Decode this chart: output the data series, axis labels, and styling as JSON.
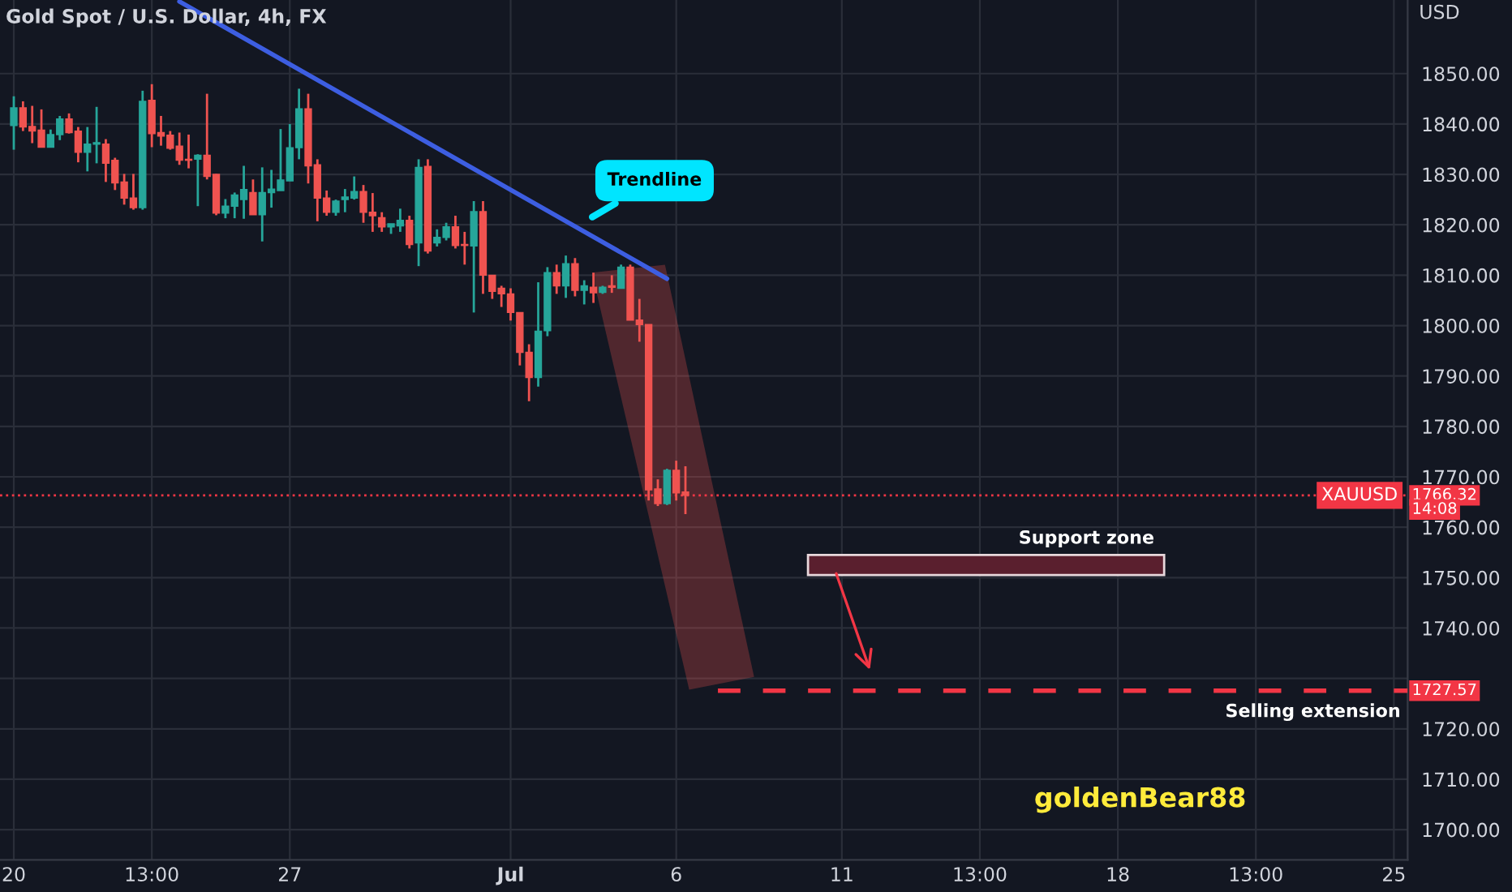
{
  "chart_data": {
    "type": "candlestick",
    "title": "Gold Spot / U.S. Dollar, 4h, FX",
    "ylabel": "USD",
    "categories": [
      "20",
      null,
      null,
      null,
      null,
      null,
      null,
      null,
      null,
      null,
      null,
      null,
      null,
      null,
      null,
      "13:00",
      null,
      null,
      null,
      null,
      null,
      null,
      null,
      null,
      null,
      null,
      null,
      null,
      null,
      null,
      "27",
      null,
      null,
      null,
      null,
      null,
      null,
      null,
      null,
      null,
      null,
      null,
      null,
      null,
      null,
      null,
      null,
      null,
      null,
      null,
      null,
      null,
      null,
      null,
      "Jul",
      null,
      null,
      null,
      null,
      null,
      null,
      null,
      null,
      null,
      null,
      null,
      null,
      null,
      null,
      null,
      null,
      null,
      "6",
      null,
      null,
      null,
      null,
      null,
      null,
      null,
      null,
      null,
      null,
      null,
      null,
      null,
      null,
      null,
      null,
      null,
      "11",
      null,
      null,
      null,
      null,
      null,
      null,
      null,
      null,
      null,
      null,
      null,
      null,
      null,
      null,
      "13:00",
      null,
      null,
      null,
      null,
      null,
      null,
      null,
      null,
      null,
      null,
      null,
      null,
      null,
      null,
      "18",
      null,
      null,
      null,
      null,
      null,
      null,
      null,
      null,
      null,
      null,
      null,
      null,
      null,
      null,
      "13:00",
      null,
      null,
      null,
      null,
      null,
      null,
      null,
      null,
      null,
      null,
      null,
      null,
      null,
      null,
      "25",
      null
    ],
    "ohlc": [
      [
        1839.7,
        1845.5,
        1834.9,
        1843.2
      ],
      [
        1843.2,
        1844.5,
        1838.6,
        1839.4
      ],
      [
        1839.5,
        1843.6,
        1836.2,
        1838.6
      ],
      [
        1838.8,
        1842.9,
        1835.4,
        1835.4
      ],
      [
        1835.4,
        1838.9,
        1835.4,
        1837.9
      ],
      [
        1837.9,
        1841.6,
        1836.8,
        1841.0
      ],
      [
        1841.0,
        1842.1,
        1838.1,
        1838.3
      ],
      [
        1838.6,
        1839.4,
        1832.4,
        1834.4
      ],
      [
        1834.4,
        1839.4,
        1830.6,
        1836.0
      ],
      [
        1836.0,
        1843.4,
        1832.2,
        1836.3
      ],
      [
        1836.0,
        1837.0,
        1828.5,
        1832.2
      ],
      [
        1832.8,
        1833.3,
        1826.9,
        1828.3
      ],
      [
        1828.5,
        1830.1,
        1824.0,
        1825.3
      ],
      [
        1825.3,
        1830.1,
        1823.0,
        1823.4
      ],
      [
        1823.4,
        1846.6,
        1823.0,
        1844.5
      ],
      [
        1844.7,
        1847.9,
        1835.4,
        1838.1
      ],
      [
        1838.3,
        1841.6,
        1835.7,
        1837.6
      ],
      [
        1837.8,
        1838.6,
        1834.9,
        1835.2
      ],
      [
        1835.6,
        1838.3,
        1831.9,
        1832.8
      ],
      [
        1833.0,
        1837.9,
        1831.2,
        1832.8
      ],
      [
        1833.0,
        1834.0,
        1823.7,
        1833.8
      ],
      [
        1833.8,
        1846.0,
        1829.0,
        1829.6
      ],
      [
        1830.0,
        1830.1,
        1821.9,
        1822.3
      ],
      [
        1822.3,
        1825.1,
        1821.3,
        1823.7
      ],
      [
        1823.7,
        1826.4,
        1821.3,
        1825.9
      ],
      [
        1825.0,
        1831.7,
        1821.2,
        1827.0
      ],
      [
        1826.4,
        1829.0,
        1822.0,
        1822.0
      ],
      [
        1822.0,
        1831.4,
        1816.7,
        1826.4
      ],
      [
        1826.4,
        1830.9,
        1823.4,
        1827.1
      ],
      [
        1826.8,
        1839.0,
        1826.8,
        1828.9
      ],
      [
        1828.7,
        1840.0,
        1828.7,
        1835.3
      ],
      [
        1835.3,
        1847.0,
        1833.0,
        1843.0
      ],
      [
        1843.0,
        1846.0,
        1828.2,
        1831.7
      ],
      [
        1831.9,
        1833.0,
        1820.7,
        1825.3
      ],
      [
        1825.3,
        1826.8,
        1821.8,
        1822.5
      ],
      [
        1822.5,
        1825.0,
        1821.8,
        1824.7
      ],
      [
        1825.0,
        1827.1,
        1822.5,
        1825.5
      ],
      [
        1825.3,
        1829.6,
        1825.0,
        1826.6
      ],
      [
        1826.6,
        1827.9,
        1820.4,
        1822.5
      ],
      [
        1822.5,
        1826.3,
        1818.6,
        1821.8
      ],
      [
        1821.4,
        1822.5,
        1818.6,
        1819.6
      ],
      [
        1819.6,
        1820.2,
        1818.2,
        1820.2
      ],
      [
        1819.8,
        1823.2,
        1818.6,
        1820.9
      ],
      [
        1820.9,
        1821.8,
        1815.3,
        1816.1
      ],
      [
        1816.4,
        1833.0,
        1811.8,
        1831.4
      ],
      [
        1831.6,
        1833.0,
        1814.3,
        1814.8
      ],
      [
        1816.4,
        1819.1,
        1815.7,
        1817.5
      ],
      [
        1817.5,
        1820.4,
        1816.9,
        1819.6
      ],
      [
        1819.6,
        1821.8,
        1815.3,
        1815.9
      ],
      [
        1816.1,
        1818.6,
        1812.1,
        1815.9
      ],
      [
        1815.8,
        1824.7,
        1802.6,
        1822.6
      ],
      [
        1822.6,
        1824.7,
        1806.3,
        1810.0
      ],
      [
        1810.0,
        1810.0,
        1805.3,
        1806.8
      ],
      [
        1807.4,
        1807.9,
        1803.7,
        1806.3
      ],
      [
        1806.3,
        1807.4,
        1801.0,
        1802.6
      ],
      [
        1802.6,
        1802.6,
        1792.1,
        1794.7
      ],
      [
        1794.7,
        1796.3,
        1785.0,
        1789.7
      ],
      [
        1789.7,
        1808.6,
        1787.9,
        1798.9
      ],
      [
        1799.0,
        1811.6,
        1797.9,
        1810.5
      ],
      [
        1810.5,
        1812.1,
        1806.3,
        1807.9
      ],
      [
        1807.9,
        1813.9,
        1805.5,
        1812.3
      ],
      [
        1812.3,
        1813.4,
        1805.8,
        1807.0
      ],
      [
        1807.0,
        1809.0,
        1804.2,
        1807.9
      ],
      [
        1807.6,
        1810.5,
        1804.5,
        1806.5
      ],
      [
        1806.6,
        1807.9,
        1806.3,
        1807.6
      ],
      [
        1807.9,
        1810.0,
        1806.5,
        1807.6
      ],
      [
        1807.4,
        1812.1,
        1807.4,
        1811.6
      ],
      [
        1811.6,
        1812.1,
        1801.1,
        1801.1
      ],
      [
        1801.1,
        1805.3,
        1796.8,
        1800.2
      ],
      [
        1800.2,
        1800.2,
        1765.3,
        1767.4
      ],
      [
        1767.6,
        1769.5,
        1764.2,
        1764.7
      ],
      [
        1764.7,
        1771.6,
        1764.4,
        1771.3
      ],
      [
        1771.3,
        1773.2,
        1765.3,
        1766.8
      ],
      [
        1767.0,
        1772.1,
        1762.6,
        1766.32
      ],
      null,
      null,
      null,
      null,
      null,
      null,
      null,
      null,
      null,
      null,
      null,
      null,
      null,
      null,
      null,
      null,
      null,
      null,
      null,
      null,
      null,
      null,
      null,
      null,
      null,
      null,
      null,
      null,
      null,
      null,
      null,
      null,
      null,
      null,
      null,
      null,
      null,
      null,
      null,
      null,
      null,
      null,
      null,
      null,
      null,
      null,
      null,
      null,
      null,
      null,
      null,
      null,
      null,
      null,
      null,
      null,
      null,
      null,
      null,
      null,
      null,
      null,
      null,
      null,
      null,
      null,
      null,
      null,
      null,
      null,
      null,
      null,
      null,
      null,
      null,
      null,
      null,
      null
    ],
    "colors": [
      "#26a69a",
      "#ef5350",
      "#ef5350",
      "#ef5350",
      "#26a69a",
      "#26a69a",
      "#ef5350",
      "#ef5350",
      "#26a69a",
      "#26a69a",
      "#ef5350",
      "#ef5350",
      "#ef5350",
      "#ef5350",
      "#26a69a",
      "#ef5350",
      "#ef5350",
      "#ef5350",
      "#ef5350",
      "#ef5350",
      "#26a69a",
      "#ef5350",
      "#ef5350",
      "#26a69a",
      "#26a69a",
      "#26a69a",
      "#ef5350",
      "#26a69a",
      "#26a69a",
      "#26a69a",
      "#26a69a",
      "#26a69a",
      "#ef5350",
      "#ef5350",
      "#ef5350",
      "#26a69a",
      "#26a69a",
      "#26a69a",
      "#ef5350",
      "#ef5350",
      "#ef5350",
      "#26a69a",
      "#26a69a",
      "#ef5350",
      "#26a69a",
      "#ef5350",
      "#26a69a",
      "#26a69a",
      "#ef5350",
      "#ef5350",
      "#26a69a",
      "#ef5350",
      "#ef5350",
      "#ef5350",
      "#ef5350",
      "#ef5350",
      "#ef5350",
      "#26a69a",
      "#26a69a",
      "#ef5350",
      "#26a69a",
      "#ef5350",
      "#26a69a",
      "#ef5350",
      "#26a69a",
      "#ef5350",
      "#26a69a",
      "#ef5350",
      "#ef5350",
      "#ef5350",
      "#ef5350",
      "#26a69a",
      "#ef5350",
      "#ef5350",
      null,
      null,
      null,
      null,
      null,
      null,
      null,
      null,
      null,
      null,
      null,
      null,
      null,
      null,
      null,
      null,
      null,
      null,
      null,
      null,
      null,
      null,
      null,
      null,
      null,
      null,
      null,
      null,
      null,
      null,
      null,
      null,
      null,
      null,
      null,
      null,
      null,
      null,
      null,
      null,
      null,
      null,
      null,
      null,
      null,
      null,
      null,
      null,
      null,
      null,
      null,
      null,
      null,
      null,
      null,
      null,
      null,
      null,
      null,
      null,
      null,
      null,
      null,
      null,
      null,
      null,
      null,
      null,
      null,
      null,
      null,
      null,
      null,
      null,
      null,
      null,
      null,
      null
    ],
    "series": [
      {
        "type": "line",
        "values": [
          null,
          null,
          null,
          null,
          null,
          null,
          null,
          null,
          null,
          null,
          null,
          null,
          null,
          null,
          null,
          null,
          null,
          null,
          1864.3,
          null,
          null,
          null,
          null,
          null,
          null,
          null,
          null,
          null,
          null,
          null,
          null,
          null,
          null,
          null,
          null,
          null,
          null,
          null,
          null,
          null,
          null,
          null,
          null,
          null,
          null,
          null,
          null,
          null,
          null,
          null,
          null,
          null,
          null,
          null,
          null,
          null,
          null,
          null,
          null,
          null,
          null,
          null,
          null,
          null,
          null,
          null,
          null,
          null,
          null,
          null,
          null,
          1809.3,
          null,
          null,
          null,
          null,
          null,
          null,
          null,
          null,
          null,
          null,
          null,
          null,
          null,
          null,
          null,
          null,
          null,
          null,
          null,
          null,
          null,
          null,
          null,
          null,
          null,
          null,
          null,
          null,
          null,
          null,
          null,
          null,
          null,
          null,
          null,
          null,
          null,
          null,
          null,
          null,
          null,
          null,
          null,
          null,
          null,
          null,
          null,
          null,
          null,
          null,
          null,
          null,
          null,
          null,
          null,
          null,
          null,
          null,
          null,
          null,
          null,
          null,
          null,
          null,
          null,
          null,
          null,
          null,
          null,
          null,
          null,
          null,
          null,
          null,
          null,
          null,
          null,
          null,
          null,
          null
        ],
        "color": "#3d5ee1"
      }
    ],
    "ylim": [
      1694,
      1864.6
    ],
    "yticks": [
      {
        "value": 1700,
        "label": "1700.00"
      },
      {
        "value": 1710,
        "label": "1710.00"
      },
      {
        "value": 1720,
        "label": "1720.00"
      },
      {
        "value": 1730,
        "label": null
      },
      {
        "value": 1740,
        "label": "1740.00"
      },
      {
        "value": 1750,
        "label": "1750.00"
      },
      {
        "value": 1760,
        "label": "1760.00"
      },
      {
        "value": 1770,
        "label": "1770.00"
      },
      {
        "value": 1780,
        "label": "1780.00"
      },
      {
        "value": 1790,
        "label": "1790.00"
      },
      {
        "value": 1800,
        "label": "1800.00"
      },
      {
        "value": 1810,
        "label": "1810.00"
      },
      {
        "value": 1820,
        "label": "1820.00"
      },
      {
        "value": 1830,
        "label": "1830.00"
      },
      {
        "value": 1840,
        "label": "1840.00"
      },
      {
        "value": 1850,
        "label": "1850.00"
      }
    ],
    "grid": true,
    "ref_lines": [
      {
        "axis": "y",
        "value": 1766.32,
        "label": "XAUUSD",
        "color": "#f23645",
        "line_style": "dotted"
      },
      {
        "axis": "y",
        "value": 1727.57,
        "label": "Selling extension",
        "color": "#f23645",
        "line_style": "dashed"
      }
    ],
    "bands": [
      {
        "axis": "y",
        "from": 1750.5,
        "to": 1754.5,
        "label": "Support zone",
        "color": "#5a1f2e"
      }
    ],
    "annotations": [
      "Trendline",
      "1766.32",
      "14:08",
      "1727.57",
      "goldenBear88"
    ]
  }
}
